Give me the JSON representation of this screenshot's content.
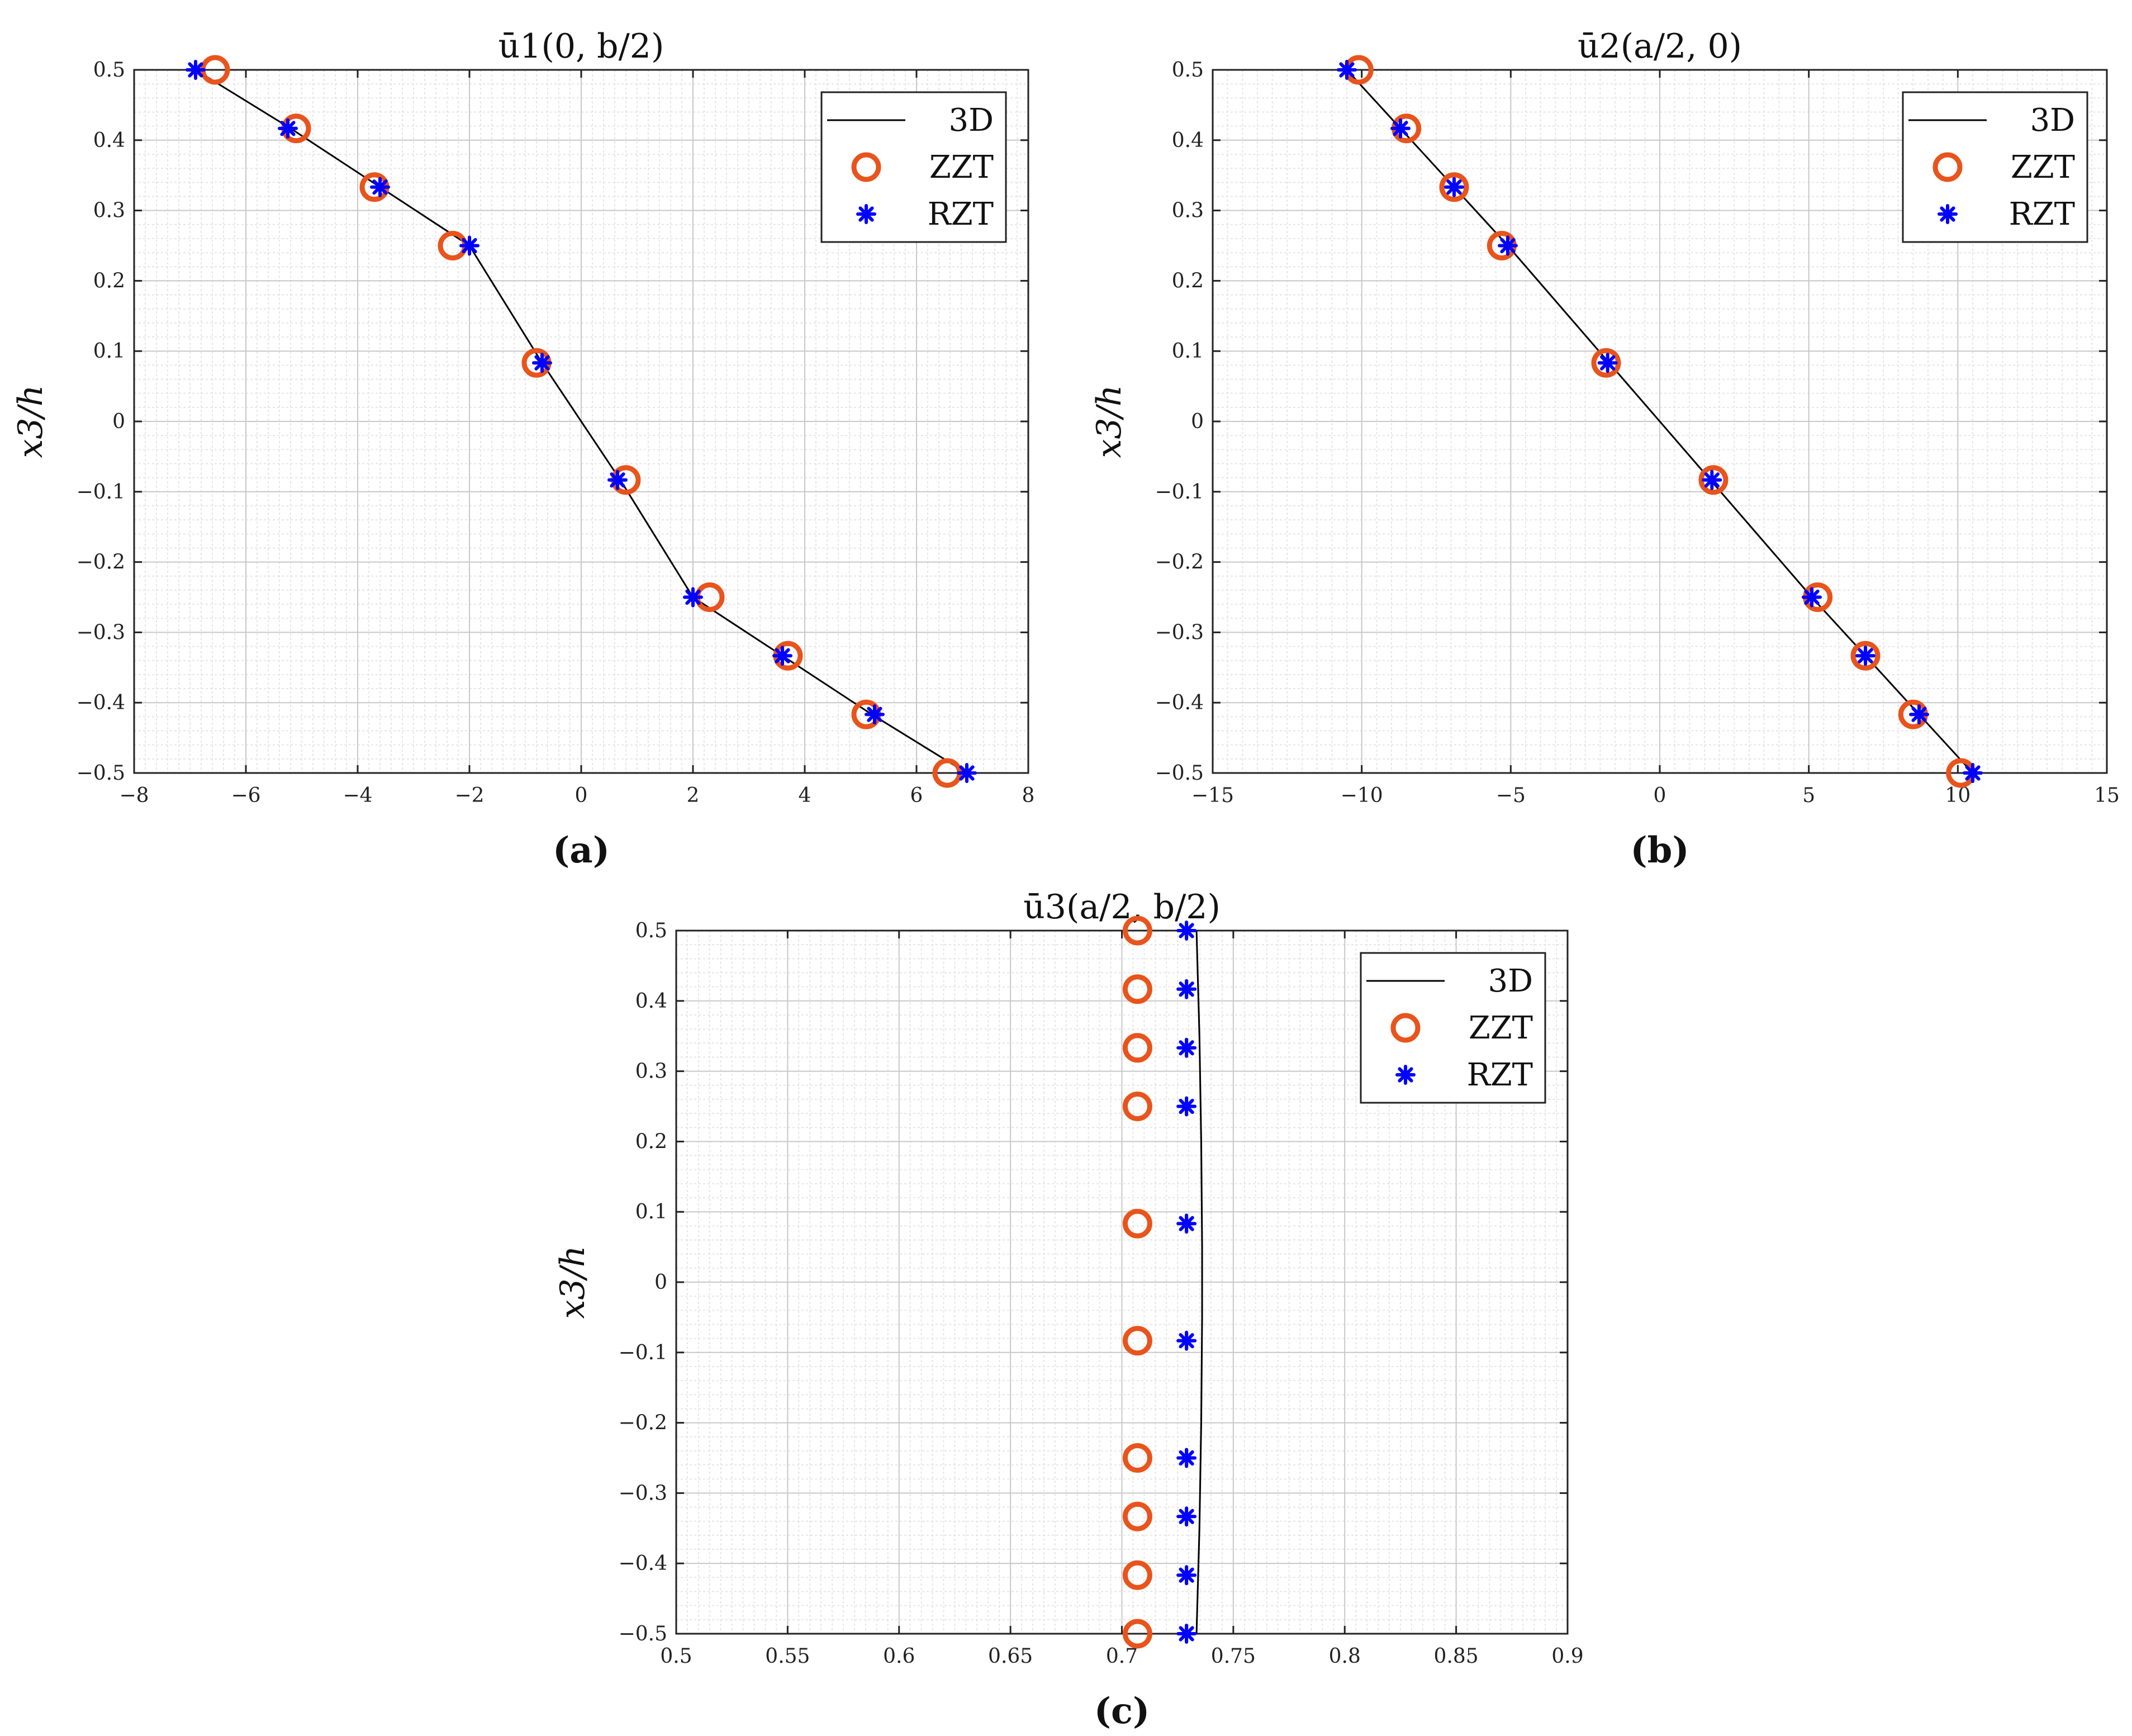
{
  "colors": {
    "line": "#000000",
    "zzt": "#E8541C",
    "rzt": "#0000FF",
    "grid_major": "#c8c8c8",
    "grid_minor": "#e6e6e6"
  },
  "chart_data": [
    {
      "type": "line",
      "panel": "a",
      "title": "ū1(0, b/2)",
      "caption": "(a)",
      "xlabel": "",
      "ylabel": "x3/h",
      "xlim": [
        -8,
        8
      ],
      "ylim": [
        -0.5,
        0.5
      ],
      "xticks": [
        -8,
        -6,
        -4,
        -2,
        0,
        2,
        4,
        6,
        8
      ],
      "yticks": [
        -0.5,
        -0.4,
        -0.3,
        -0.2,
        -0.1,
        0,
        0.1,
        0.2,
        0.3,
        0.4,
        0.5
      ],
      "xtick_labels": [
        "−8",
        "−6",
        "−4",
        "−2",
        "0",
        "2",
        "4",
        "6",
        "8"
      ],
      "ytick_labels": [
        "−0.5",
        "−0.4",
        "−0.3",
        "−0.2",
        "−0.1",
        "0",
        "0.1",
        "0.2",
        "0.3",
        "0.4",
        "0.5"
      ],
      "grid": true,
      "legend": {
        "position": "top-right",
        "entries": [
          "3D",
          "ZZT",
          "RZT"
        ]
      },
      "series": [
        {
          "name": "3D",
          "style": "line",
          "x": [
            -6.9,
            -5.2,
            -3.6,
            -2.0,
            -0.7,
            0.7,
            2.0,
            3.6,
            5.2,
            6.9
          ],
          "y": [
            0.5,
            0.4167,
            0.3333,
            0.25,
            0.0833,
            -0.0833,
            -0.25,
            -0.3333,
            -0.4167,
            -0.5
          ]
        },
        {
          "name": "ZZT",
          "style": "circle",
          "x": [
            -6.55,
            -5.1,
            -3.7,
            -2.3,
            -0.8,
            0.8,
            2.3,
            3.7,
            5.1,
            6.55
          ],
          "y": [
            0.5,
            0.4167,
            0.3333,
            0.25,
            0.0833,
            -0.0833,
            -0.25,
            -0.3333,
            -0.4167,
            -0.5
          ]
        },
        {
          "name": "RZT",
          "style": "star",
          "x": [
            -6.9,
            -5.25,
            -3.6,
            -2.0,
            -0.7,
            0.65,
            2.0,
            3.6,
            5.25,
            6.9
          ],
          "y": [
            0.5,
            0.4167,
            0.3333,
            0.25,
            0.0833,
            -0.0833,
            -0.25,
            -0.3333,
            -0.4167,
            -0.5
          ]
        }
      ]
    },
    {
      "type": "line",
      "panel": "b",
      "title": "ū2(a/2, 0)",
      "caption": "(b)",
      "xlabel": "",
      "ylabel": "x3/h",
      "xlim": [
        -15,
        15
      ],
      "ylim": [
        -0.5,
        0.5
      ],
      "xticks": [
        -15,
        -10,
        -5,
        0,
        5,
        10,
        15
      ],
      "yticks": [
        -0.5,
        -0.4,
        -0.3,
        -0.2,
        -0.1,
        0,
        0.1,
        0.2,
        0.3,
        0.4,
        0.5
      ],
      "xtick_labels": [
        "−15",
        "−10",
        "−5",
        "0",
        "5",
        "10",
        "15"
      ],
      "ytick_labels": [
        "−0.5",
        "−0.4",
        "−0.3",
        "−0.2",
        "−0.1",
        "0",
        "0.1",
        "0.2",
        "0.3",
        "0.4",
        "0.5"
      ],
      "grid": true,
      "legend": {
        "position": "top-right",
        "entries": [
          "3D",
          "ZZT",
          "RZT"
        ]
      },
      "series": [
        {
          "name": "3D",
          "style": "line",
          "x": [
            -10.5,
            -8.7,
            -6.9,
            -5.1,
            -1.7,
            1.7,
            5.1,
            6.9,
            8.7,
            10.5
          ],
          "y": [
            0.5,
            0.4167,
            0.3333,
            0.25,
            0.0833,
            -0.0833,
            -0.25,
            -0.3333,
            -0.4167,
            -0.5
          ]
        },
        {
          "name": "ZZT",
          "style": "circle",
          "x": [
            -10.1,
            -8.5,
            -6.9,
            -5.3,
            -1.8,
            1.8,
            5.3,
            6.9,
            8.5,
            10.1
          ],
          "y": [
            0.5,
            0.4167,
            0.3333,
            0.25,
            0.0833,
            -0.0833,
            -0.25,
            -0.3333,
            -0.4167,
            -0.5
          ]
        },
        {
          "name": "RZT",
          "style": "star",
          "x": [
            -10.5,
            -8.7,
            -6.9,
            -5.1,
            -1.75,
            1.75,
            5.1,
            6.9,
            8.7,
            10.5
          ],
          "y": [
            0.5,
            0.4167,
            0.3333,
            0.25,
            0.0833,
            -0.0833,
            -0.25,
            -0.3333,
            -0.4167,
            -0.5
          ]
        }
      ]
    },
    {
      "type": "line",
      "panel": "c",
      "title": "ū3(a/2, b/2)",
      "caption": "(c)",
      "xlabel": "",
      "ylabel": "x3/h",
      "xlim": [
        0.5,
        0.9
      ],
      "ylim": [
        -0.5,
        0.5
      ],
      "xticks": [
        0.5,
        0.55,
        0.6,
        0.65,
        0.7,
        0.75,
        0.8,
        0.85,
        0.9
      ],
      "yticks": [
        -0.5,
        -0.4,
        -0.3,
        -0.2,
        -0.1,
        0,
        0.1,
        0.2,
        0.3,
        0.4,
        0.5
      ],
      "xtick_labels": [
        "0.5",
        "0.55",
        "0.6",
        "0.65",
        "0.7",
        "0.75",
        "0.8",
        "0.85",
        "0.9"
      ],
      "ytick_labels": [
        "−0.5",
        "−0.4",
        "−0.3",
        "−0.2",
        "−0.1",
        "0",
        "0.1",
        "0.2",
        "0.3",
        "0.4",
        "0.5"
      ],
      "grid": true,
      "legend": {
        "position": "top-right",
        "entries": [
          "3D",
          "ZZT",
          "RZT"
        ]
      },
      "series": [
        {
          "name": "3D",
          "style": "line",
          "x": [
            0.7335,
            0.7348,
            0.7356,
            0.736,
            0.736,
            0.7356,
            0.7348,
            0.7335
          ],
          "y": [
            0.5,
            0.35,
            0.2,
            0.05,
            -0.05,
            -0.2,
            -0.35,
            -0.5
          ]
        },
        {
          "name": "ZZT",
          "style": "circle",
          "x": [
            0.707,
            0.707,
            0.707,
            0.707,
            0.707,
            0.707,
            0.707,
            0.707,
            0.707,
            0.707
          ],
          "y": [
            0.5,
            0.4167,
            0.3333,
            0.25,
            0.0833,
            -0.0833,
            -0.25,
            -0.3333,
            -0.4167,
            -0.5
          ]
        },
        {
          "name": "RZT",
          "style": "star",
          "x": [
            0.729,
            0.729,
            0.729,
            0.729,
            0.729,
            0.729,
            0.729,
            0.729,
            0.729,
            0.729
          ],
          "y": [
            0.5,
            0.4167,
            0.3333,
            0.25,
            0.0833,
            -0.0833,
            -0.25,
            -0.3333,
            -0.4167,
            -0.5
          ]
        }
      ]
    }
  ]
}
